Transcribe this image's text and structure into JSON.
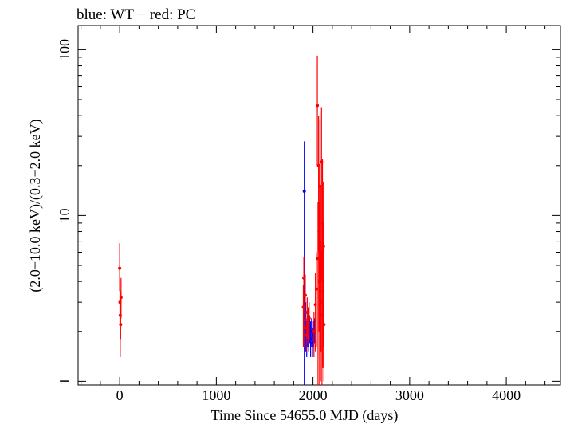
{
  "chart_data": {
    "type": "scatter",
    "title": "blue: WT − red: PC",
    "xlabel": "Time Since 54655.0 MJD (days)",
    "ylabel": "(2.0−10.0 keV)/(0.3−2.0 keV)",
    "xlim": [
      -430,
      4560
    ],
    "ylim": [
      0.95,
      140
    ],
    "yscale": "log",
    "x_ticks": [
      0,
      1000,
      2000,
      3000,
      4000
    ],
    "y_ticks": [
      1,
      10,
      100
    ],
    "y_tick_labels": [
      "1",
      "10",
      "100"
    ],
    "grid": false,
    "series": [
      {
        "name": "WT",
        "color": "#0000ff",
        "points": [
          {
            "x": 1910,
            "y": 14.0,
            "ylo": 0.9,
            "yhi": 28.0
          },
          {
            "x": 1925,
            "y": 2.2,
            "ylo": 1.5,
            "yhi": 3.0
          },
          {
            "x": 1935,
            "y": 1.8,
            "ylo": 1.4,
            "yhi": 2.3
          },
          {
            "x": 1945,
            "y": 2.0,
            "ylo": 1.6,
            "yhi": 2.5
          },
          {
            "x": 1955,
            "y": 1.9,
            "ylo": 1.5,
            "yhi": 2.4
          },
          {
            "x": 1965,
            "y": 2.1,
            "ylo": 1.7,
            "yhi": 2.5
          },
          {
            "x": 1975,
            "y": 1.8,
            "ylo": 1.4,
            "yhi": 2.3
          },
          {
            "x": 1985,
            "y": 2.0,
            "ylo": 1.6,
            "yhi": 2.4
          },
          {
            "x": 1995,
            "y": 1.7,
            "ylo": 1.4,
            "yhi": 2.1
          },
          {
            "x": 2005,
            "y": 1.9,
            "ylo": 1.6,
            "yhi": 2.3
          },
          {
            "x": 2015,
            "y": 2.0,
            "ylo": 1.7,
            "yhi": 2.4
          }
        ]
      },
      {
        "name": "PC",
        "color": "#ff0000",
        "points": [
          {
            "x": 0,
            "y": 4.8,
            "ylo": 3.5,
            "yhi": 6.8
          },
          {
            "x": 3,
            "y": 3.0,
            "ylo": 2.2,
            "yhi": 4.0
          },
          {
            "x": 6,
            "y": 2.5,
            "ylo": 1.4,
            "yhi": 3.5
          },
          {
            "x": 10,
            "y": 2.2,
            "ylo": 1.8,
            "yhi": 2.7
          },
          {
            "x": 14,
            "y": 3.2,
            "ylo": 2.4,
            "yhi": 4.2
          },
          {
            "x": 1900,
            "y": 2.8,
            "ylo": 1.6,
            "yhi": 3.8
          },
          {
            "x": 1905,
            "y": 4.2,
            "ylo": 2.8,
            "yhi": 5.6
          },
          {
            "x": 1915,
            "y": 2.1,
            "ylo": 1.6,
            "yhi": 2.8
          },
          {
            "x": 1920,
            "y": 3.3,
            "ylo": 2.3,
            "yhi": 4.4
          },
          {
            "x": 1930,
            "y": 1.9,
            "ylo": 1.5,
            "yhi": 2.4
          },
          {
            "x": 1940,
            "y": 2.6,
            "ylo": 1.8,
            "yhi": 3.2
          },
          {
            "x": 1950,
            "y": 2.2,
            "ylo": 1.7,
            "yhi": 2.8
          },
          {
            "x": 1960,
            "y": 2.4,
            "ylo": 1.8,
            "yhi": 3.0
          },
          {
            "x": 2010,
            "y": 2.0,
            "ylo": 1.4,
            "yhi": 2.6
          },
          {
            "x": 2025,
            "y": 2.9,
            "ylo": 1.5,
            "yhi": 4.5
          },
          {
            "x": 2035,
            "y": 3.6,
            "ylo": 1.6,
            "yhi": 6.0
          },
          {
            "x": 2045,
            "y": 46.0,
            "ylo": 20.0,
            "yhi": 92.0
          },
          {
            "x": 2052,
            "y": 5.5,
            "ylo": 0.95,
            "yhi": 12.0
          },
          {
            "x": 2058,
            "y": 20.0,
            "ylo": 6.0,
            "yhi": 40.0
          },
          {
            "x": 2063,
            "y": 8.0,
            "ylo": 2.0,
            "yhi": 20.0
          },
          {
            "x": 2068,
            "y": 4.0,
            "ylo": 0.95,
            "yhi": 12.0
          },
          {
            "x": 2073,
            "y": 15.0,
            "ylo": 3.0,
            "yhi": 38.0
          },
          {
            "x": 2078,
            "y": 3.0,
            "ylo": 1.0,
            "yhi": 7.0
          },
          {
            "x": 2083,
            "y": 6.0,
            "ylo": 1.5,
            "yhi": 15.0
          },
          {
            "x": 2088,
            "y": 21.0,
            "ylo": 4.0,
            "yhi": 45.0
          },
          {
            "x": 2093,
            "y": 2.5,
            "ylo": 0.95,
            "yhi": 6.0
          },
          {
            "x": 2098,
            "y": 9.0,
            "ylo": 2.0,
            "yhi": 22.0
          },
          {
            "x": 2103,
            "y": 3.5,
            "ylo": 1.2,
            "yhi": 9.0
          },
          {
            "x": 2108,
            "y": 6.5,
            "ylo": 1.6,
            "yhi": 16.0
          },
          {
            "x": 2113,
            "y": 2.2,
            "ylo": 1.0,
            "yhi": 5.0
          }
        ]
      }
    ]
  }
}
